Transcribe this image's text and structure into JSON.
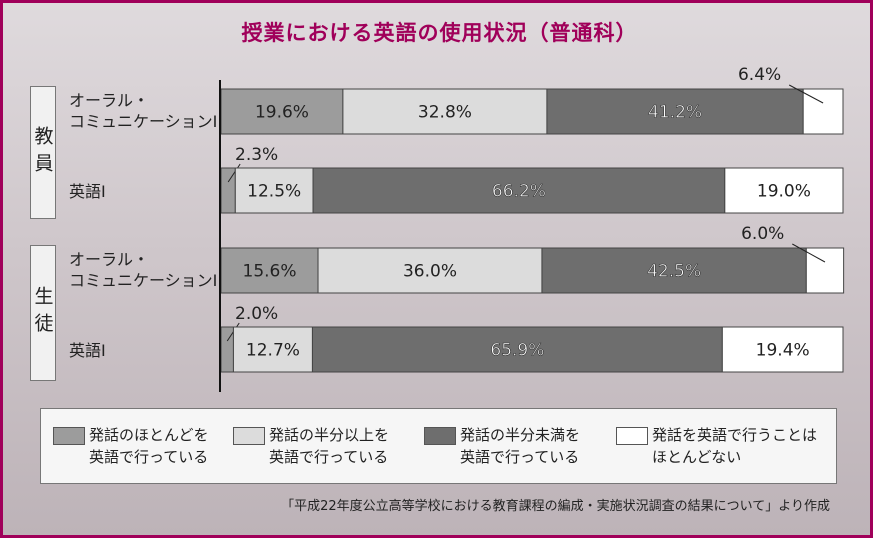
{
  "title": "授業における英語の使用状況（普通科）",
  "groups": [
    {
      "label": "教員"
    },
    {
      "label": "生徒"
    }
  ],
  "rows": [
    {
      "label": "オーラル・\nコミュニケーションⅠ"
    },
    {
      "label": "英語Ⅰ"
    },
    {
      "label": "オーラル・\nコミュニケーションⅠ"
    },
    {
      "label": "英語Ⅰ"
    }
  ],
  "legend": [
    "発話のほとんどを\n英語で行っている",
    "発話の半分以上を\n英語で行っている",
    "発話の半分未満を\n英語で行っている",
    "発話を英語で行うことは\nほとんどない"
  ],
  "source": "「平成22年度公立高等学校における教育課程の編成・実施状況調査の結果について」より作成",
  "colors": {
    "accent": "#a0005a",
    "series": [
      "#9c9c9c",
      "#dcdcdc",
      "#6e6e6e",
      "#ffffff"
    ]
  },
  "chart_data": {
    "type": "bar",
    "orientation": "horizontal",
    "stacked": true,
    "categories": [
      "教員 オーラル・コミュニケーションⅠ",
      "教員 英語Ⅰ",
      "生徒 オーラル・コミュニケーションⅠ",
      "生徒 英語Ⅰ"
    ],
    "series": [
      {
        "name": "発話のほとんどを英語で行っている",
        "values": [
          19.6,
          2.3,
          15.6,
          2.0
        ]
      },
      {
        "name": "発話の半分以上を英語で行っている",
        "values": [
          32.8,
          12.5,
          36.0,
          12.7
        ]
      },
      {
        "name": "発話の半分未満を英語で行っている",
        "values": [
          41.2,
          66.2,
          42.5,
          65.9
        ]
      },
      {
        "name": "発話を英語で行うことはほとんどない",
        "values": [
          6.4,
          19.0,
          6.0,
          19.4
        ]
      }
    ],
    "value_labels": [
      [
        "19.6%",
        "32.8%",
        "41.2%",
        "6.4%"
      ],
      [
        "2.3%",
        "12.5%",
        "66.2%",
        "19.0%"
      ],
      [
        "15.6%",
        "36.0%",
        "42.5%",
        "6.0%"
      ],
      [
        "2.0%",
        "12.7%",
        "65.9%",
        "19.4%"
      ]
    ],
    "xlim": [
      0,
      100
    ],
    "legend_position": "bottom"
  }
}
